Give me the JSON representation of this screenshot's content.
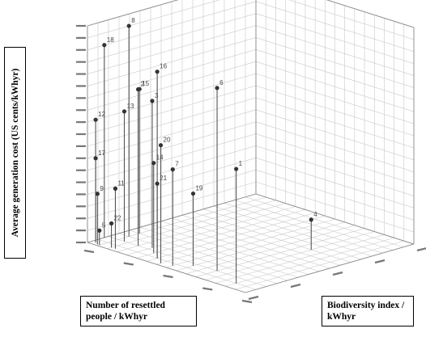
{
  "chart_data": {
    "type": "scatter",
    "dimension": "3d",
    "ylabel": "Average generation cost (US cents/kWhyr)",
    "xlabel": "Number of resettled people / kWhyr",
    "zlabel": "Biodiversity index / kWhyr",
    "grid": true,
    "drop_lines": true,
    "points": [
      {
        "label": "8",
        "x": 0.05,
        "y": 17.5,
        "z": 0.15
      },
      {
        "label": "18",
        "x": 0.0,
        "y": 16.0,
        "z": 0.08
      },
      {
        "label": "16",
        "x": 0.3,
        "y": 15.5,
        "z": 0.05
      },
      {
        "label": "6",
        "x": 0.55,
        "y": 15.2,
        "z": 0.1
      },
      {
        "label": "2",
        "x": 0.15,
        "y": 13.0,
        "z": 0.1
      },
      {
        "label": "3",
        "x": 0.2,
        "y": 12.2,
        "z": 0.12
      },
      {
        "label": "15",
        "x": 0.05,
        "y": 12.0,
        "z": 0.2
      },
      {
        "label": "13",
        "x": 0.08,
        "y": 10.8,
        "z": 0.1
      },
      {
        "label": "12",
        "x": 0.02,
        "y": 10.2,
        "z": 0.02
      },
      {
        "label": "20",
        "x": 0.35,
        "y": 9.8,
        "z": 0.02
      },
      {
        "label": "1",
        "x": 0.7,
        "y": 9.5,
        "z": 0.05
      },
      {
        "label": "7",
        "x": 0.4,
        "y": 8.0,
        "z": 0.03
      },
      {
        "label": "14",
        "x": 0.25,
        "y": 7.5,
        "z": 0.08
      },
      {
        "label": "17",
        "x": 0.02,
        "y": 7.0,
        "z": 0.02
      },
      {
        "label": "21",
        "x": 0.3,
        "y": 6.2,
        "z": 0.05
      },
      {
        "label": "19",
        "x": 0.45,
        "y": 6.0,
        "z": 0.08
      },
      {
        "label": "11",
        "x": 0.12,
        "y": 5.0,
        "z": 0.02
      },
      {
        "label": "9",
        "x": 0.04,
        "y": 4.2,
        "z": 0.01
      },
      {
        "label": "4",
        "x": 0.6,
        "y": 2.5,
        "z": 0.5
      },
      {
        "label": "22",
        "x": 0.1,
        "y": 2.0,
        "z": 0.02
      },
      {
        "label": "5",
        "x": 0.05,
        "y": 1.2,
        "z": 0.01
      }
    ]
  }
}
